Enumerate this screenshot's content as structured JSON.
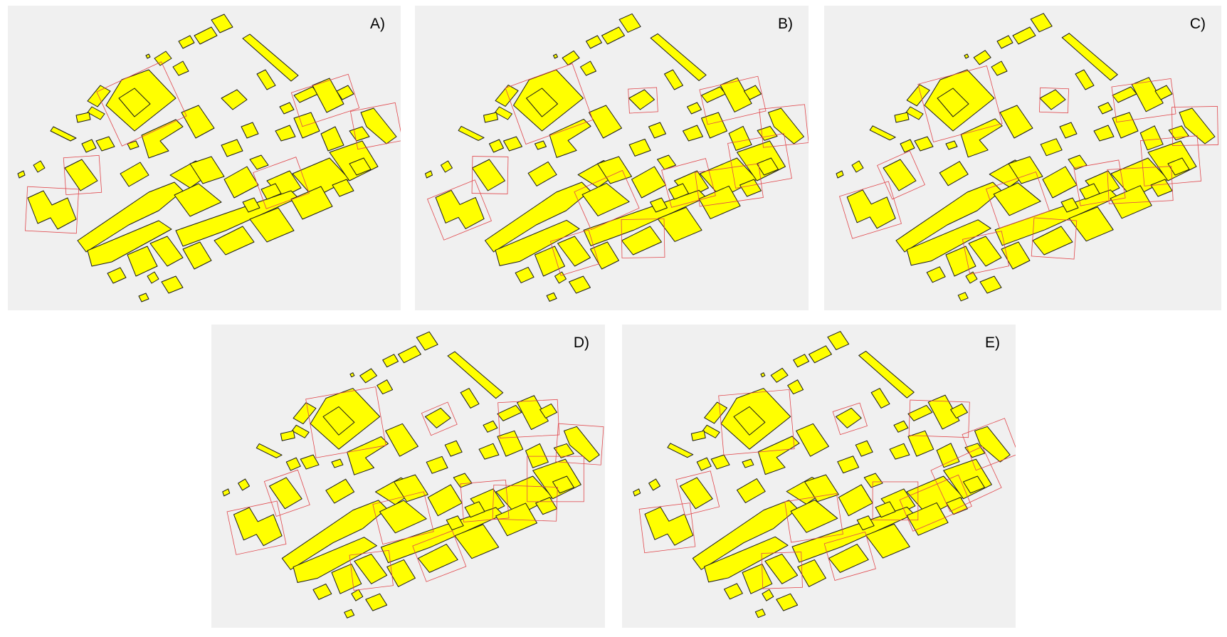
{
  "colors": {
    "background": "#f0f0f0",
    "building_fill": "#ffff00",
    "building_stroke": "#1a1a1a",
    "envelope_stroke": "#e0474c"
  },
  "panels": [
    {
      "id": "A",
      "label": "A)"
    },
    {
      "id": "B",
      "label": "B)"
    },
    {
      "id": "C",
      "label": "C)"
    },
    {
      "id": "D",
      "label": "D)"
    },
    {
      "id": "E",
      "label": "E)"
    }
  ]
}
